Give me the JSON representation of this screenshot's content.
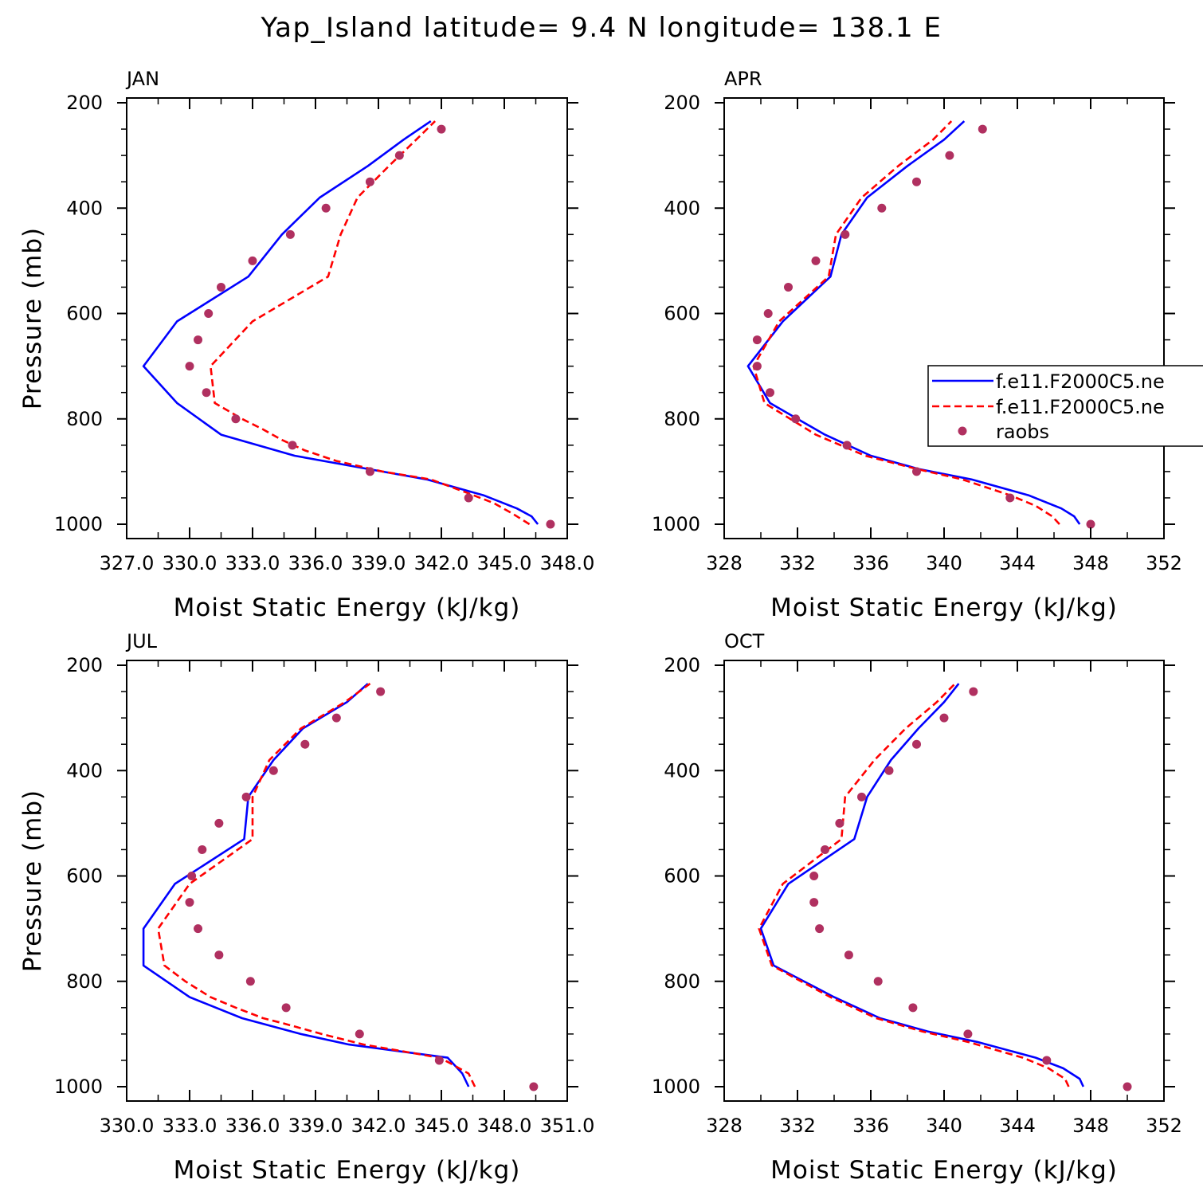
{
  "figure": {
    "title": "Yap_Island  latitude= 9.4 N longitude= 138.1 E",
    "xlabel": "Moist Static Energy (kJ/kg)",
    "ylabel": "Pressure (mb)"
  },
  "legend": {
    "entries": [
      {
        "label": "f.e11.F2000C5.ne",
        "style": "solid",
        "color": "#0000ff"
      },
      {
        "label": "f.e11.F2000C5.ne",
        "style": "dashed",
        "color": "#ff0000"
      },
      {
        "label": "raobs",
        "style": "marker",
        "color": "#b03060"
      }
    ]
  },
  "colors": {
    "model1": "#0000ff",
    "model2": "#ff0000",
    "raobs": "#b03060"
  },
  "chart_data": [
    {
      "type": "line",
      "panel_label": "JAN",
      "xlim": [
        327.0,
        348.0
      ],
      "xticks": [
        327.0,
        330.0,
        333.0,
        336.0,
        339.0,
        342.0,
        345.0,
        348.0
      ],
      "xtick_labels": [
        "327.0",
        "330.0",
        "333.0",
        "336.0",
        "339.0",
        "342.0",
        "345.0",
        "348.0"
      ],
      "ylim": [
        1000,
        200
      ],
      "yticks": [
        200,
        400,
        600,
        800,
        1000
      ],
      "series": [
        {
          "key": "model1",
          "style": "solid",
          "color": "#0000ff",
          "pressure": [
            1000,
            985,
            970,
            945,
            915,
            895,
            870,
            830,
            770,
            700,
            615,
            530,
            450,
            380,
            320,
            270,
            235
          ],
          "values": [
            346.6,
            346.3,
            345.6,
            344.0,
            341.3,
            338.5,
            335.0,
            331.5,
            329.4,
            327.8,
            329.4,
            332.8,
            334.4,
            336.2,
            338.5,
            340.2,
            341.5
          ]
        },
        {
          "key": "model2",
          "style": "dashed",
          "color": "#ff0000",
          "pressure": [
            1000,
            980,
            960,
            940,
            915,
            900,
            880,
            860,
            840,
            820,
            800,
            770,
            700,
            615,
            530,
            450,
            380,
            320,
            270,
            235
          ],
          "values": [
            346.2,
            345.4,
            344.5,
            343.2,
            341.5,
            339.2,
            337.0,
            335.5,
            334.4,
            333.5,
            332.5,
            331.2,
            331.0,
            333.0,
            336.6,
            337.2,
            338.0,
            339.5,
            340.8,
            341.7
          ]
        },
        {
          "key": "raobs",
          "style": "marker",
          "color": "#b03060",
          "pressure": [
            1000,
            950,
            900,
            850,
            800,
            750,
            700,
            650,
            600,
            550,
            500,
            450,
            400,
            350,
            300,
            250
          ],
          "values": [
            347.2,
            343.3,
            338.6,
            334.9,
            332.2,
            330.8,
            330.0,
            330.4,
            330.9,
            331.5,
            333.0,
            334.8,
            336.5,
            338.6,
            340.0,
            342.0
          ]
        }
      ]
    },
    {
      "type": "line",
      "panel_label": "APR",
      "xlim": [
        328,
        352
      ],
      "xticks": [
        328,
        332,
        336,
        340,
        344,
        348,
        352
      ],
      "xtick_labels": [
        "328",
        "332",
        "336",
        "340",
        "344",
        "348",
        "352"
      ],
      "ylim": [
        1000,
        200
      ],
      "yticks": [
        200,
        400,
        600,
        800,
        1000
      ],
      "series": [
        {
          "key": "model1",
          "style": "solid",
          "color": "#0000ff",
          "pressure": [
            1000,
            985,
            970,
            945,
            915,
            895,
            870,
            830,
            770,
            700,
            615,
            530,
            450,
            380,
            320,
            270,
            235
          ],
          "values": [
            347.4,
            347.1,
            346.4,
            344.6,
            341.5,
            338.6,
            336.0,
            333.5,
            330.5,
            329.3,
            331.2,
            333.8,
            334.4,
            335.8,
            338.0,
            340.0,
            341.1
          ]
        },
        {
          "key": "model2",
          "style": "dashed",
          "color": "#ff0000",
          "pressure": [
            1000,
            985,
            965,
            945,
            915,
            895,
            870,
            830,
            770,
            700,
            615,
            530,
            450,
            380,
            320,
            270,
            235
          ],
          "values": [
            346.3,
            345.9,
            345.0,
            343.6,
            341.0,
            338.5,
            335.7,
            333.0,
            330.2,
            329.6,
            331.0,
            333.7,
            334.1,
            335.5,
            337.5,
            339.4,
            340.4
          ]
        },
        {
          "key": "raobs",
          "style": "marker",
          "color": "#b03060",
          "pressure": [
            1000,
            950,
            900,
            850,
            800,
            750,
            700,
            650,
            600,
            550,
            500,
            450,
            400,
            350,
            300,
            250
          ],
          "values": [
            348.0,
            343.6,
            338.5,
            334.7,
            331.9,
            330.5,
            329.8,
            329.8,
            330.4,
            331.5,
            333.0,
            334.6,
            336.6,
            338.5,
            340.3,
            342.1
          ]
        }
      ]
    },
    {
      "type": "line",
      "panel_label": "JUL",
      "xlim": [
        330.0,
        351.0
      ],
      "xticks": [
        330.0,
        333.0,
        336.0,
        339.0,
        342.0,
        345.0,
        348.0,
        351.0
      ],
      "xtick_labels": [
        "330.0",
        "333.0",
        "336.0",
        "339.0",
        "342.0",
        "345.0",
        "348.0",
        "351.0"
      ],
      "ylim": [
        1000,
        200
      ],
      "yticks": [
        200,
        400,
        600,
        800,
        1000
      ],
      "series": [
        {
          "key": "model1",
          "style": "solid",
          "color": "#0000ff",
          "pressure": [
            1000,
            975,
            945,
            920,
            900,
            870,
            830,
            770,
            700,
            615,
            530,
            450,
            380,
            320,
            270,
            235
          ],
          "values": [
            346.3,
            346.0,
            345.3,
            340.6,
            338.3,
            335.5,
            333.0,
            330.8,
            330.8,
            332.3,
            335.6,
            335.8,
            337.0,
            338.4,
            340.5,
            341.5
          ]
        },
        {
          "key": "model2",
          "style": "dashed",
          "color": "#ff0000",
          "pressure": [
            1000,
            975,
            955,
            945,
            920,
            900,
            880,
            870,
            850,
            830,
            800,
            770,
            700,
            615,
            530,
            450,
            380,
            320,
            270,
            235
          ],
          "values": [
            346.6,
            346.3,
            345.4,
            344.9,
            341.3,
            339.3,
            337.5,
            336.5,
            335.2,
            334.0,
            332.8,
            331.8,
            331.5,
            333.0,
            336.0,
            336.0,
            336.8,
            338.3,
            340.4,
            341.6
          ]
        },
        {
          "key": "raobs",
          "style": "marker",
          "color": "#b03060",
          "pressure": [
            1000,
            950,
            900,
            850,
            800,
            750,
            700,
            650,
            600,
            550,
            500,
            450,
            400,
            350,
            300,
            250
          ],
          "values": [
            349.4,
            344.9,
            341.1,
            337.6,
            335.9,
            334.4,
            333.4,
            333.0,
            333.1,
            333.6,
            334.4,
            335.7,
            337.0,
            338.5,
            340.0,
            342.1
          ]
        }
      ]
    },
    {
      "type": "line",
      "panel_label": "OCT",
      "xlim": [
        328,
        352
      ],
      "xticks": [
        328,
        332,
        336,
        340,
        344,
        348,
        352
      ],
      "xtick_labels": [
        "328",
        "332",
        "336",
        "340",
        "344",
        "348",
        "352"
      ],
      "ylim": [
        1000,
        200
      ],
      "yticks": [
        200,
        400,
        600,
        800,
        1000
      ],
      "series": [
        {
          "key": "model1",
          "style": "solid",
          "color": "#0000ff",
          "pressure": [
            1000,
            985,
            965,
            945,
            915,
            895,
            870,
            830,
            770,
            700,
            615,
            530,
            450,
            380,
            320,
            270,
            235
          ],
          "values": [
            347.6,
            347.4,
            346.5,
            345.0,
            341.8,
            339.1,
            336.5,
            334.0,
            330.7,
            330.0,
            331.5,
            335.1,
            335.8,
            337.1,
            338.6,
            340.0,
            340.8
          ]
        },
        {
          "key": "model2",
          "style": "dashed",
          "color": "#ff0000",
          "pressure": [
            1000,
            985,
            965,
            945,
            915,
            895,
            870,
            830,
            770,
            700,
            615,
            530,
            450,
            380,
            320,
            270,
            235
          ],
          "values": [
            346.8,
            346.6,
            345.7,
            344.3,
            341.3,
            338.8,
            336.3,
            333.8,
            330.6,
            329.9,
            331.2,
            334.4,
            334.6,
            336.2,
            337.9,
            339.6,
            340.6
          ]
        },
        {
          "key": "raobs",
          "style": "marker",
          "color": "#b03060",
          "pressure": [
            1000,
            950,
            900,
            850,
            800,
            750,
            700,
            650,
            600,
            550,
            500,
            450,
            400,
            350,
            300,
            250
          ],
          "values": [
            350.0,
            345.6,
            341.3,
            338.3,
            336.4,
            334.8,
            333.2,
            332.9,
            332.9,
            333.5,
            334.3,
            335.5,
            337.0,
            338.5,
            340.0,
            341.6
          ]
        }
      ]
    }
  ]
}
